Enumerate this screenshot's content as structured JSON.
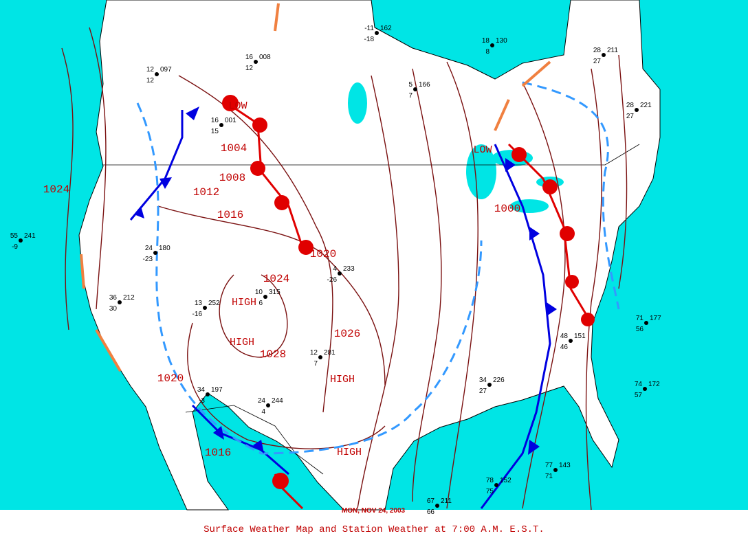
{
  "caption": "Surface Weather Map and Station Weather at 7:00 A.M. E.S.T.",
  "date": "MON, NOV 24, 2003",
  "pressure_centers": [
    "LOW",
    "LOW",
    "HIGH",
    "HIGH",
    "HIGH",
    "HIGH"
  ],
  "isobar_labels": [
    "1024",
    "1004",
    "1008",
    "1012",
    "1016",
    "1020",
    "1024",
    "1028",
    "1026",
    "1016",
    "1000",
    "1020"
  ],
  "stations": [
    {
      "temp": "55",
      "pressure": "241",
      "dew": "-9"
    },
    {
      "temp": "12",
      "pressure": "097",
      "dew": "12"
    },
    {
      "temp": "16",
      "pressure": "008",
      "dew": "12"
    },
    {
      "temp": "-11",
      "pressure": "162",
      "dew": "-18"
    },
    {
      "temp": "18",
      "pressure": "130",
      "dew": "8"
    },
    {
      "temp": "5",
      "pressure": "166",
      "dew": "7"
    },
    {
      "temp": "28",
      "pressure": "211",
      "dew": "27"
    },
    {
      "temp": "28",
      "pressure": "221",
      "dew": "27"
    },
    {
      "temp": "16",
      "pressure": "001",
      "dew": "15"
    },
    {
      "temp": "4",
      "pressure": "233",
      "dew": "-26"
    },
    {
      "temp": "10",
      "pressure": "315",
      "dew": "6"
    },
    {
      "temp": "13",
      "pressure": "252",
      "dew": "-16"
    },
    {
      "temp": "36",
      "pressure": "212",
      "dew": "30"
    },
    {
      "temp": "24",
      "pressure": "180",
      "dew": "-23"
    },
    {
      "temp": "12",
      "pressure": "281",
      "dew": "7"
    },
    {
      "temp": "34",
      "pressure": "226",
      "dew": "27"
    },
    {
      "temp": "71",
      "pressure": "177",
      "dew": "56"
    },
    {
      "temp": "74",
      "pressure": "172",
      "dew": "57"
    },
    {
      "temp": "77",
      "pressure": "143",
      "dew": "71"
    },
    {
      "temp": "78",
      "pressure": "152",
      "dew": "75"
    },
    {
      "temp": "67",
      "pressure": "211",
      "dew": "66"
    },
    {
      "temp": "48",
      "pressure": "151",
      "dew": "46"
    },
    {
      "temp": "34",
      "pressure": "197",
      "dew": "-3"
    },
    {
      "temp": "24",
      "pressure": "244",
      "dew": "4"
    }
  ]
}
